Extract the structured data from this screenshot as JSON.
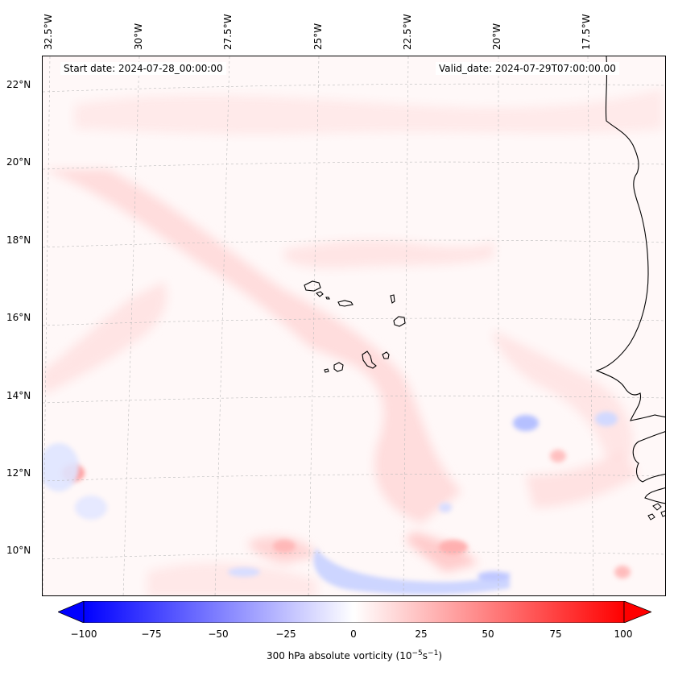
{
  "header": {
    "start_date": "Start date: 2024-07-28_00:00:00",
    "valid_date": "Valid_date: 2024-07-29T07:00:00.00"
  },
  "axes": {
    "lon_labels": [
      "32.5°W",
      "30°W",
      "27.5°W",
      "25°W",
      "22.5°W",
      "20°W",
      "17.5°W"
    ],
    "lat_labels": [
      "22°N",
      "20°N",
      "18°N",
      "16°N",
      "14°N",
      "12°N",
      "10°N"
    ]
  },
  "colorbar": {
    "ticks": [
      "−100",
      "−75",
      "−50",
      "−25",
      "0",
      "25",
      "50",
      "75",
      "100"
    ],
    "label_main": "300 hPa absolute vorticity (10",
    "label_exp1": "−5",
    "label_mid": "s",
    "label_exp2": "−1",
    "label_end": ")",
    "min": -100,
    "max": 100,
    "low_color": "#0000ff",
    "high_color": "#ff0000"
  },
  "map": {
    "features": [
      "coastline",
      "cape-verde-islands",
      "gridlines"
    ],
    "positive_color": "#ffd6d6",
    "negative_color": "#dde3ff"
  }
}
